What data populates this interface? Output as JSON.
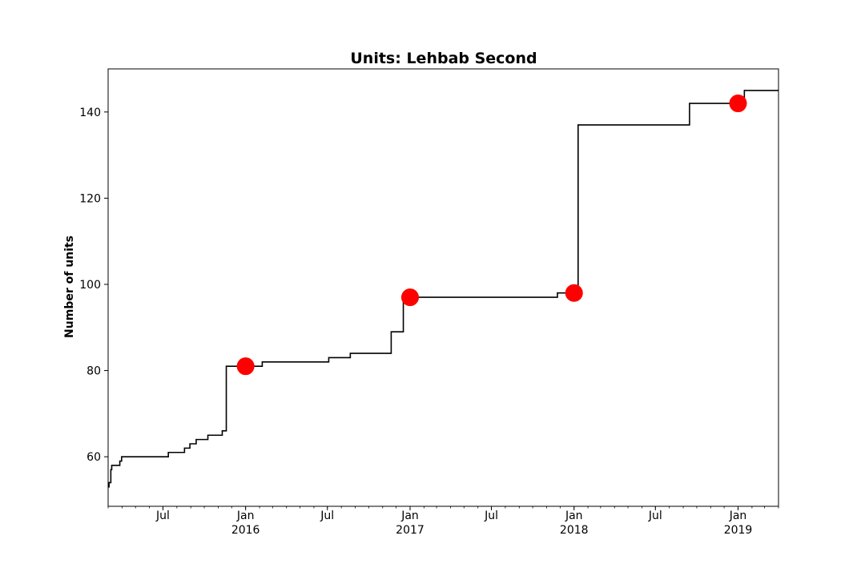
{
  "chart_data": {
    "type": "line",
    "title": "Units: Lehbab Second",
    "xlabel": "",
    "ylabel": "Number of units",
    "xlim": [
      "2015-03-01",
      "2019-04-01"
    ],
    "ylim": [
      48.5,
      150
    ],
    "grid": false,
    "legend": "none",
    "x_tick_labels": [
      {
        "date": "2015-07-01",
        "label": "Jul",
        "sub": ""
      },
      {
        "date": "2016-01-01",
        "label": "Jan",
        "sub": "2016"
      },
      {
        "date": "2016-07-01",
        "label": "Jul",
        "sub": ""
      },
      {
        "date": "2017-01-01",
        "label": "Jan",
        "sub": "2017"
      },
      {
        "date": "2017-07-01",
        "label": "Jul",
        "sub": ""
      },
      {
        "date": "2018-01-01",
        "label": "Jan",
        "sub": "2018"
      },
      {
        "date": "2018-07-01",
        "label": "Jul",
        "sub": ""
      },
      {
        "date": "2019-01-01",
        "label": "Jan",
        "sub": "2019"
      }
    ],
    "y_ticks": [
      60,
      80,
      100,
      120,
      140
    ],
    "series": [
      {
        "style": "step",
        "color": "#000000",
        "points": [
          [
            "2015-03-01",
            53
          ],
          [
            "2015-03-03",
            54
          ],
          [
            "2015-03-07",
            57
          ],
          [
            "2015-03-09",
            58
          ],
          [
            "2015-03-27",
            59
          ],
          [
            "2015-03-31",
            60
          ],
          [
            "2015-07-13",
            61
          ],
          [
            "2015-08-18",
            62
          ],
          [
            "2015-08-30",
            63
          ],
          [
            "2015-09-13",
            64
          ],
          [
            "2015-10-09",
            65
          ],
          [
            "2015-11-10",
            66
          ],
          [
            "2015-11-19",
            81
          ],
          [
            "2016-02-07",
            82
          ],
          [
            "2016-07-04",
            83
          ],
          [
            "2016-08-21",
            84
          ],
          [
            "2016-11-20",
            89
          ],
          [
            "2016-12-17",
            97
          ],
          [
            "2017-11-25",
            98
          ],
          [
            "2018-01-10",
            137
          ],
          [
            "2018-09-15",
            142
          ],
          [
            "2019-01-15",
            145
          ],
          [
            "2019-04-01",
            145
          ]
        ]
      }
    ],
    "markers": {
      "color": "#ff0000",
      "points": [
        [
          "2016-01-01",
          81
        ],
        [
          "2017-01-01",
          97
        ],
        [
          "2018-01-01",
          98
        ],
        [
          "2019-01-01",
          142
        ]
      ]
    }
  }
}
